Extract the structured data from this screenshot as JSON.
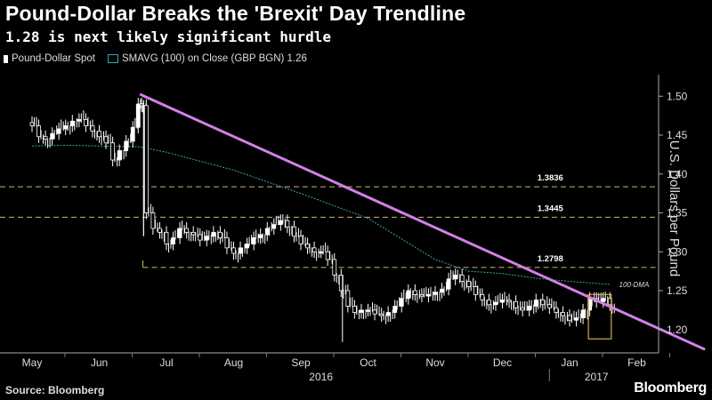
{
  "header": {
    "title": "Pound-Dollar Breaks the 'Brexit' Day Trendline",
    "subtitle": "1.28 is next likely significant hurdle"
  },
  "legend": {
    "series1": "Pound-Dollar Spot",
    "series2": "SMAVG (100) on Close (GBP BGN) 1.26"
  },
  "footer": {
    "source": "Source: Bloomberg",
    "brand": "Bloomberg"
  },
  "colors": {
    "background": "#000000",
    "candles": "#ffffff",
    "trendline": "#d37fe9",
    "moving_average": "#3aa6a6",
    "levels": "#d6b26a",
    "highlight_box": "#d6a44a"
  },
  "chart_data": {
    "type": "candlestick",
    "title": "Pound-Dollar Breaks the 'Brexit' Day Trendline",
    "ylabel": "U.S. Dollars per Pound",
    "ylim": [
      1.17,
      1.53
    ],
    "y_ticks": [
      "1.50",
      "1.45",
      "1.40",
      "1.35",
      "1.30",
      "1.25",
      "1.20"
    ],
    "x_ticks": [
      "May",
      "Jun",
      "Jul",
      "Aug",
      "Sep",
      "Oct",
      "Nov",
      "Dec",
      "Jan",
      "Feb"
    ],
    "year_labels": [
      "2016",
      "2017"
    ],
    "x_index_range": [
      0,
      10
    ],
    "levels": [
      {
        "label": "1.3836",
        "value": 1.3836
      },
      {
        "label": "1.3445",
        "value": 1.3445
      },
      {
        "label": "1.2798",
        "value": 1.2798
      }
    ],
    "trendline": {
      "x": [
        1.62,
        10.0
      ],
      "y": [
        1.502,
        1.175
      ]
    },
    "moving_average_label": "100-DMA",
    "moving_average": {
      "x": [
        0,
        0.5,
        1.0,
        1.6,
        2.0,
        3.0,
        4.0,
        5.0,
        6.0,
        6.5,
        7.0,
        7.5,
        8.0,
        8.6
      ],
      "y": [
        1.436,
        1.437,
        1.436,
        1.435,
        1.428,
        1.405,
        1.375,
        1.343,
        1.29,
        1.275,
        1.272,
        1.266,
        1.262,
        1.258
      ]
    },
    "closes": {
      "x": [
        0,
        0.1,
        0.2,
        0.3,
        0.4,
        0.5,
        0.6,
        0.7,
        0.8,
        0.9,
        1.0,
        1.1,
        1.2,
        1.3,
        1.4,
        1.5,
        1.58,
        1.63,
        1.7,
        1.8,
        1.9,
        2.0,
        2.1,
        2.2,
        2.3,
        2.4,
        2.5,
        2.6,
        2.7,
        2.8,
        2.9,
        3.0,
        3.1,
        3.2,
        3.3,
        3.4,
        3.5,
        3.6,
        3.7,
        3.8,
        3.9,
        4.0,
        4.1,
        4.2,
        4.3,
        4.4,
        4.5,
        4.6,
        4.7,
        4.8,
        4.9,
        5.0,
        5.1,
        5.2,
        5.3,
        5.4,
        5.5,
        5.6,
        5.7,
        5.8,
        5.9,
        6.0,
        6.1,
        6.2,
        6.3,
        6.4,
        6.5,
        6.6,
        6.7,
        6.8,
        6.9,
        7.0,
        7.1,
        7.2,
        7.3,
        7.4,
        7.5,
        7.6,
        7.7,
        7.8,
        7.9,
        8.0,
        8.1,
        8.2,
        8.3,
        8.4,
        8.5,
        8.6
      ],
      "y": [
        1.462,
        1.448,
        1.445,
        1.452,
        1.458,
        1.462,
        1.468,
        1.47,
        1.462,
        1.455,
        1.448,
        1.44,
        1.418,
        1.43,
        1.442,
        1.46,
        1.49,
        1.488,
        1.35,
        1.33,
        1.325,
        1.31,
        1.318,
        1.33,
        1.325,
        1.322,
        1.315,
        1.32,
        1.325,
        1.318,
        1.305,
        1.298,
        1.305,
        1.31,
        1.318,
        1.322,
        1.33,
        1.335,
        1.34,
        1.332,
        1.32,
        1.31,
        1.305,
        1.3,
        1.3,
        1.29,
        1.27,
        1.25,
        1.23,
        1.222,
        1.225,
        1.225,
        1.22,
        1.218,
        1.222,
        1.23,
        1.24,
        1.25,
        1.245,
        1.243,
        1.245,
        1.248,
        1.252,
        1.265,
        1.27,
        1.262,
        1.255,
        1.245,
        1.238,
        1.232,
        1.235,
        1.238,
        1.236,
        1.228,
        1.225,
        1.23,
        1.238,
        1.232,
        1.228,
        1.222,
        1.218,
        1.212,
        1.215,
        1.225,
        1.24,
        1.236,
        1.24,
        1.232
      ]
    },
    "highlight_box": {
      "x": [
        8.28,
        8.62
      ],
      "y": [
        1.245,
        1.188
      ]
    }
  }
}
